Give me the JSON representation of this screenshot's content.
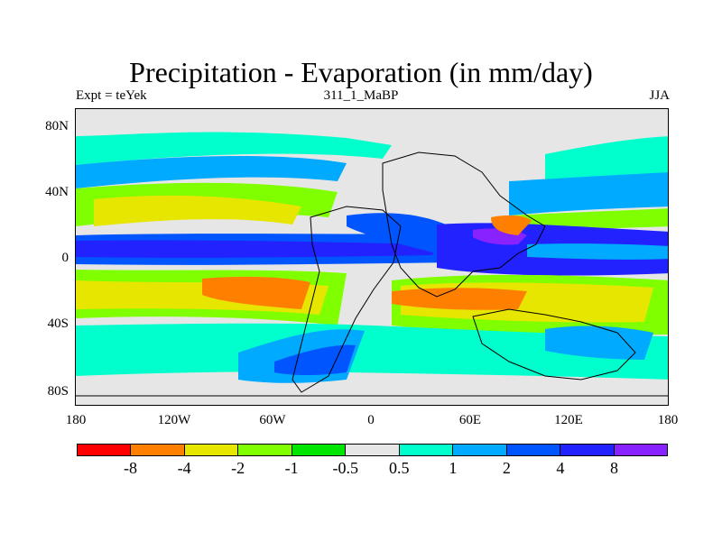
{
  "title": "Precipitation - Evaporation (in mm/day)",
  "subtitle_left": "Expt = teYek",
  "subtitle_center": "311_1_MaBP",
  "subtitle_right": "JJA",
  "y_ticks": [
    "80N",
    "40N",
    "0",
    "40S",
    "80S"
  ],
  "x_ticks": [
    "180",
    "120W",
    "60W",
    "0",
    "60E",
    "120E",
    "180"
  ],
  "colorbar": {
    "colors": [
      "#ff0000",
      "#ff8000",
      "#e6e600",
      "#80ff00",
      "#00e600",
      "#e6e6e6",
      "#00ffcc",
      "#00aaff",
      "#0055ff",
      "#2222ff",
      "#8822ff"
    ],
    "labels": [
      "-8",
      "-4",
      "-2",
      "-1",
      "-0.5",
      "0.5",
      "1",
      "2",
      "4",
      "8"
    ]
  },
  "chart_data": {
    "type": "heatmap",
    "title": "Precipitation - Evaporation (in mm/day)",
    "xlabel": "",
    "ylabel": "",
    "x_range": [
      -180,
      180
    ],
    "y_range": [
      -90,
      90
    ],
    "contour_levels": [
      -8,
      -4,
      -2,
      -1,
      -0.5,
      0.5,
      1,
      2,
      4,
      8
    ],
    "units": "mm/day",
    "season": "JJA",
    "experiment": "teYek",
    "run": "311_1_MaBP"
  }
}
